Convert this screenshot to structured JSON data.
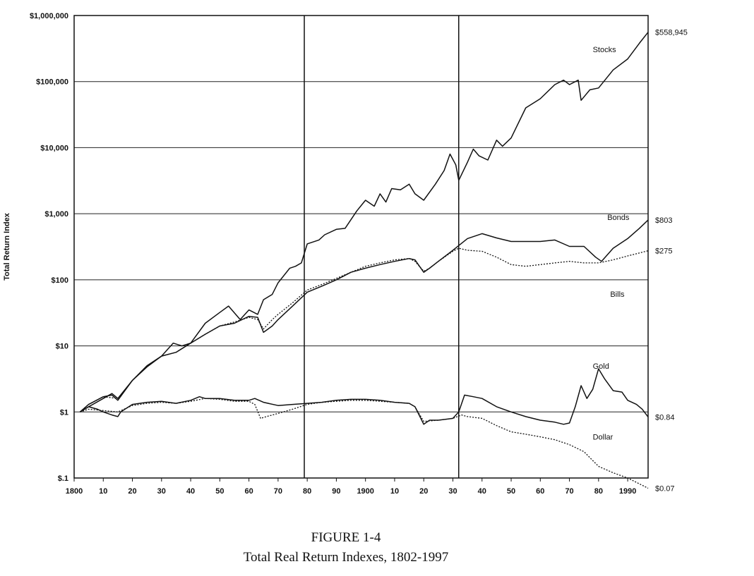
{
  "figure_number": "FIGURE 1-4",
  "caption": "Total Real Return Indexes, 1802-1997",
  "chart_data": {
    "type": "line",
    "title": "",
    "ylabel": "Total Return Index",
    "xlabel": "",
    "yscale": "log",
    "xlim": [
      1800,
      1997
    ],
    "ylim": [
      0.1,
      1000000
    ],
    "grid": true,
    "x_ticks": [
      {
        "value": 1800,
        "label": "1800"
      },
      {
        "value": 1810,
        "label": "10"
      },
      {
        "value": 1820,
        "label": "20"
      },
      {
        "value": 1830,
        "label": "30"
      },
      {
        "value": 1840,
        "label": "40"
      },
      {
        "value": 1850,
        "label": "50"
      },
      {
        "value": 1860,
        "label": "60"
      },
      {
        "value": 1870,
        "label": "70"
      },
      {
        "value": 1880,
        "label": "80"
      },
      {
        "value": 1890,
        "label": "90"
      },
      {
        "value": 1900,
        "label": "1900"
      },
      {
        "value": 1910,
        "label": "10"
      },
      {
        "value": 1920,
        "label": "20"
      },
      {
        "value": 1930,
        "label": "30"
      },
      {
        "value": 1940,
        "label": "40"
      },
      {
        "value": 1950,
        "label": "50"
      },
      {
        "value": 1960,
        "label": "60"
      },
      {
        "value": 1970,
        "label": "70"
      },
      {
        "value": 1980,
        "label": "80"
      },
      {
        "value": 1990,
        "label": "1990"
      }
    ],
    "y_ticks": [
      {
        "value": 0.1,
        "label": "$.1"
      },
      {
        "value": 1,
        "label": "$1"
      },
      {
        "value": 10,
        "label": "$10"
      },
      {
        "value": 100,
        "label": "$100"
      },
      {
        "value": 1000,
        "label": "$1,000"
      },
      {
        "value": 10000,
        "label": "$10,000"
      },
      {
        "value": 100000,
        "label": "$100,000"
      },
      {
        "value": 1000000,
        "label": "$1,000,000"
      }
    ],
    "vertical_lines": [
      1879,
      1932
    ],
    "series": [
      {
        "name": "Stocks",
        "style": "solid",
        "end_label": "$558,945",
        "label_x": 1978,
        "label_y": 280000,
        "points": [
          [
            1802,
            1
          ],
          [
            1805,
            1.3
          ],
          [
            1810,
            1.7
          ],
          [
            1813,
            1.8
          ],
          [
            1815,
            1.5
          ],
          [
            1820,
            3
          ],
          [
            1825,
            5
          ],
          [
            1830,
            7
          ],
          [
            1834,
            11
          ],
          [
            1837,
            10
          ],
          [
            1840,
            11
          ],
          [
            1845,
            22
          ],
          [
            1850,
            32
          ],
          [
            1853,
            40
          ],
          [
            1857,
            25
          ],
          [
            1860,
            35
          ],
          [
            1863,
            30
          ],
          [
            1865,
            50
          ],
          [
            1868,
            60
          ],
          [
            1870,
            90
          ],
          [
            1874,
            150
          ],
          [
            1876,
            160
          ],
          [
            1878,
            180
          ],
          [
            1880,
            350
          ],
          [
            1884,
            400
          ],
          [
            1886,
            480
          ],
          [
            1890,
            580
          ],
          [
            1893,
            600
          ],
          [
            1897,
            1100
          ],
          [
            1900,
            1600
          ],
          [
            1903,
            1300
          ],
          [
            1905,
            2000
          ],
          [
            1907,
            1500
          ],
          [
            1909,
            2400
          ],
          [
            1912,
            2300
          ],
          [
            1915,
            2800
          ],
          [
            1917,
            2000
          ],
          [
            1920,
            1600
          ],
          [
            1924,
            2800
          ],
          [
            1927,
            4500
          ],
          [
            1929,
            8000
          ],
          [
            1931,
            5500
          ],
          [
            1932,
            3200
          ],
          [
            1935,
            6000
          ],
          [
            1937,
            9500
          ],
          [
            1939,
            7500
          ],
          [
            1942,
            6500
          ],
          [
            1945,
            13000
          ],
          [
            1947,
            10500
          ],
          [
            1950,
            14000
          ],
          [
            1955,
            40000
          ],
          [
            1960,
            55000
          ],
          [
            1965,
            90000
          ],
          [
            1968,
            105000
          ],
          [
            1970,
            90000
          ],
          [
            1973,
            105000
          ],
          [
            1974,
            52000
          ],
          [
            1977,
            75000
          ],
          [
            1980,
            80000
          ],
          [
            1985,
            150000
          ],
          [
            1990,
            220000
          ],
          [
            1994,
            380000
          ],
          [
            1997,
            558945
          ]
        ]
      },
      {
        "name": "Bonds",
        "style": "solid",
        "end_label": "$803",
        "label_x": 1983,
        "label_y": 800,
        "points": [
          [
            1802,
            1
          ],
          [
            1805,
            1.2
          ],
          [
            1810,
            1.6
          ],
          [
            1813,
            1.9
          ],
          [
            1815,
            1.6
          ],
          [
            1820,
            3
          ],
          [
            1825,
            4.8
          ],
          [
            1830,
            7
          ],
          [
            1835,
            8
          ],
          [
            1840,
            11
          ],
          [
            1845,
            15
          ],
          [
            1850,
            20
          ],
          [
            1855,
            22
          ],
          [
            1860,
            28
          ],
          [
            1863,
            27
          ],
          [
            1865,
            16
          ],
          [
            1868,
            20
          ],
          [
            1870,
            25
          ],
          [
            1875,
            40
          ],
          [
            1880,
            65
          ],
          [
            1885,
            80
          ],
          [
            1890,
            100
          ],
          [
            1895,
            130
          ],
          [
            1900,
            150
          ],
          [
            1905,
            170
          ],
          [
            1910,
            190
          ],
          [
            1915,
            210
          ],
          [
            1917,
            200
          ],
          [
            1920,
            130
          ],
          [
            1922,
            150
          ],
          [
            1925,
            190
          ],
          [
            1930,
            280
          ],
          [
            1932,
            330
          ],
          [
            1935,
            420
          ],
          [
            1940,
            500
          ],
          [
            1945,
            430
          ],
          [
            1950,
            380
          ],
          [
            1955,
            380
          ],
          [
            1960,
            380
          ],
          [
            1965,
            400
          ],
          [
            1970,
            320
          ],
          [
            1975,
            320
          ],
          [
            1979,
            220
          ],
          [
            1981,
            190
          ],
          [
            1985,
            300
          ],
          [
            1990,
            420
          ],
          [
            1994,
            600
          ],
          [
            1997,
            803
          ]
        ]
      },
      {
        "name": "Bills",
        "style": "dotted",
        "end_label": "$275",
        "label_x": 1984,
        "label_y": 55,
        "points": [
          [
            1802,
            1
          ],
          [
            1805,
            1.3
          ],
          [
            1810,
            1.7
          ],
          [
            1815,
            1.6
          ],
          [
            1820,
            3
          ],
          [
            1825,
            5
          ],
          [
            1830,
            7
          ],
          [
            1835,
            8
          ],
          [
            1840,
            11
          ],
          [
            1845,
            15
          ],
          [
            1850,
            20
          ],
          [
            1855,
            23
          ],
          [
            1860,
            27
          ],
          [
            1863,
            25
          ],
          [
            1865,
            18
          ],
          [
            1868,
            25
          ],
          [
            1870,
            30
          ],
          [
            1875,
            45
          ],
          [
            1880,
            70
          ],
          [
            1885,
            85
          ],
          [
            1890,
            105
          ],
          [
            1895,
            130
          ],
          [
            1900,
            160
          ],
          [
            1905,
            180
          ],
          [
            1910,
            200
          ],
          [
            1915,
            210
          ],
          [
            1917,
            190
          ],
          [
            1920,
            135
          ],
          [
            1922,
            150
          ],
          [
            1925,
            190
          ],
          [
            1930,
            270
          ],
          [
            1932,
            300
          ],
          [
            1935,
            280
          ],
          [
            1940,
            270
          ],
          [
            1945,
            220
          ],
          [
            1950,
            170
          ],
          [
            1955,
            160
          ],
          [
            1960,
            170
          ],
          [
            1965,
            180
          ],
          [
            1970,
            190
          ],
          [
            1975,
            180
          ],
          [
            1980,
            180
          ],
          [
            1985,
            200
          ],
          [
            1990,
            230
          ],
          [
            1997,
            275
          ]
        ]
      },
      {
        "name": "Gold",
        "style": "solid",
        "end_label": "$0.84",
        "label_x": 1978,
        "label_y": 4.5,
        "points": [
          [
            1802,
            1
          ],
          [
            1805,
            1.2
          ],
          [
            1808,
            1.1
          ],
          [
            1810,
            1
          ],
          [
            1813,
            0.9
          ],
          [
            1815,
            0.85
          ],
          [
            1816,
            1
          ],
          [
            1820,
            1.3
          ],
          [
            1825,
            1.4
          ],
          [
            1830,
            1.45
          ],
          [
            1835,
            1.35
          ],
          [
            1840,
            1.5
          ],
          [
            1843,
            1.7
          ],
          [
            1845,
            1.6
          ],
          [
            1850,
            1.6
          ],
          [
            1855,
            1.5
          ],
          [
            1860,
            1.5
          ],
          [
            1862,
            1.6
          ],
          [
            1865,
            1.4
          ],
          [
            1870,
            1.25
          ],
          [
            1875,
            1.3
          ],
          [
            1880,
            1.35
          ],
          [
            1885,
            1.4
          ],
          [
            1890,
            1.5
          ],
          [
            1895,
            1.55
          ],
          [
            1900,
            1.55
          ],
          [
            1905,
            1.5
          ],
          [
            1910,
            1.4
          ],
          [
            1915,
            1.35
          ],
          [
            1917,
            1.2
          ],
          [
            1920,
            0.65
          ],
          [
            1922,
            0.75
          ],
          [
            1925,
            0.75
          ],
          [
            1930,
            0.8
          ],
          [
            1932,
            1.0
          ],
          [
            1934,
            1.8
          ],
          [
            1937,
            1.7
          ],
          [
            1940,
            1.6
          ],
          [
            1945,
            1.2
          ],
          [
            1950,
            1.0
          ],
          [
            1955,
            0.85
          ],
          [
            1960,
            0.75
          ],
          [
            1965,
            0.7
          ],
          [
            1968,
            0.65
          ],
          [
            1970,
            0.68
          ],
          [
            1972,
            1.2
          ],
          [
            1974,
            2.5
          ],
          [
            1976,
            1.6
          ],
          [
            1978,
            2.2
          ],
          [
            1980,
            4.5
          ],
          [
            1982,
            3.2
          ],
          [
            1985,
            2.1
          ],
          [
            1988,
            2.0
          ],
          [
            1990,
            1.5
          ],
          [
            1993,
            1.3
          ],
          [
            1995,
            1.1
          ],
          [
            1997,
            0.84
          ]
        ]
      },
      {
        "name": "Dollar",
        "style": "dotted",
        "end_label": "$0.07",
        "label_x": 1978,
        "label_y": 0.38,
        "points": [
          [
            1802,
            1
          ],
          [
            1805,
            1.1
          ],
          [
            1810,
            1.05
          ],
          [
            1815,
            1.0
          ],
          [
            1820,
            1.25
          ],
          [
            1825,
            1.35
          ],
          [
            1830,
            1.4
          ],
          [
            1835,
            1.35
          ],
          [
            1840,
            1.45
          ],
          [
            1845,
            1.6
          ],
          [
            1850,
            1.55
          ],
          [
            1855,
            1.45
          ],
          [
            1860,
            1.45
          ],
          [
            1862,
            1.3
          ],
          [
            1864,
            0.8
          ],
          [
            1866,
            0.85
          ],
          [
            1870,
            0.95
          ],
          [
            1875,
            1.1
          ],
          [
            1880,
            1.3
          ],
          [
            1885,
            1.4
          ],
          [
            1890,
            1.45
          ],
          [
            1895,
            1.5
          ],
          [
            1900,
            1.5
          ],
          [
            1905,
            1.45
          ],
          [
            1910,
            1.4
          ],
          [
            1915,
            1.35
          ],
          [
            1917,
            1.2
          ],
          [
            1920,
            0.72
          ],
          [
            1925,
            0.75
          ],
          [
            1930,
            0.8
          ],
          [
            1933,
            0.9
          ],
          [
            1935,
            0.85
          ],
          [
            1940,
            0.8
          ],
          [
            1945,
            0.62
          ],
          [
            1950,
            0.5
          ],
          [
            1955,
            0.46
          ],
          [
            1960,
            0.42
          ],
          [
            1965,
            0.38
          ],
          [
            1970,
            0.32
          ],
          [
            1975,
            0.25
          ],
          [
            1980,
            0.15
          ],
          [
            1985,
            0.12
          ],
          [
            1990,
            0.1
          ],
          [
            1997,
            0.07
          ]
        ]
      }
    ]
  }
}
